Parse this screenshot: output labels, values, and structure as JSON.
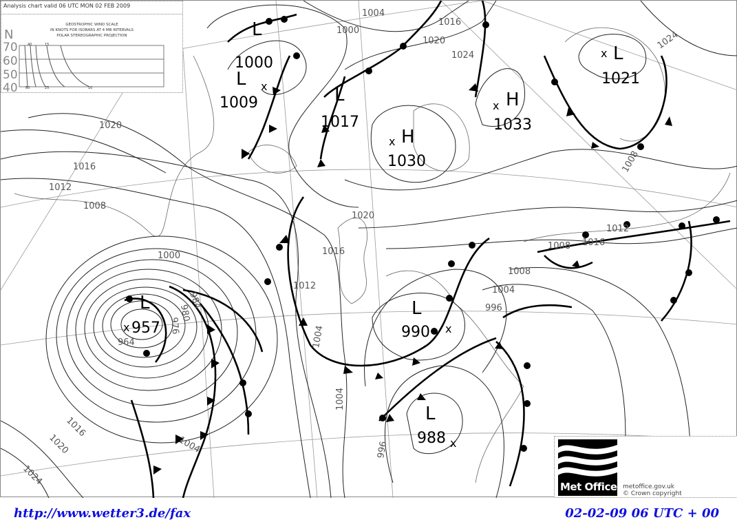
{
  "header": {
    "title": "Analysis chart valid 06 UTC MON 02 FEB 2009"
  },
  "wind_scale": {
    "lines": [
      "GEOSTROPHIC WIND SCALE",
      "IN KNOTS FOR ISOBARS AT  4 MB INTERVALS",
      "POLAR STEREOGRAPHIC PROJECTION"
    ],
    "lat_axis_label": "N",
    "latitudes": [
      "70",
      "60",
      "50",
      "40"
    ],
    "top_speeds": [
      "40",
      "15"
    ],
    "bottom_speeds": [
      "80",
      "25",
      "10"
    ]
  },
  "pressure_centres": [
    {
      "type": "L",
      "value": "1000"
    },
    {
      "type": "L",
      "value": "1009"
    },
    {
      "type": "L",
      "value": "1017"
    },
    {
      "type": "H",
      "value": "1030"
    },
    {
      "type": "H",
      "value": "1033"
    },
    {
      "type": "L",
      "value": "1021"
    },
    {
      "type": "L",
      "value": "957"
    },
    {
      "type": "L",
      "value": "990"
    },
    {
      "type": "L",
      "value": "988"
    }
  ],
  "isobar_labels": [
    "1000",
    "1004",
    "1016",
    "1020",
    "1024",
    "1020",
    "1016",
    "1012",
    "1008",
    "1000",
    "1016",
    "1012",
    "1020",
    "1008",
    "1004",
    "996",
    "1004",
    "1004",
    "996",
    "1016",
    "1020",
    "1024",
    "1008",
    "1016",
    "1024",
    "1012",
    "984",
    "980",
    "976",
    "964",
    "1004",
    "1008"
  ],
  "logo": {
    "text": "Met Office",
    "site": "metoffice.gov.uk",
    "copyright": "©  Crown copyright"
  },
  "footer": {
    "url": "http://www.wetter3.de/fax",
    "time": "02-02-09 06 UTC + 00"
  },
  "colors": {
    "footer_text": "#1010e0",
    "fronts": "#000000",
    "isobars": "#222222"
  }
}
